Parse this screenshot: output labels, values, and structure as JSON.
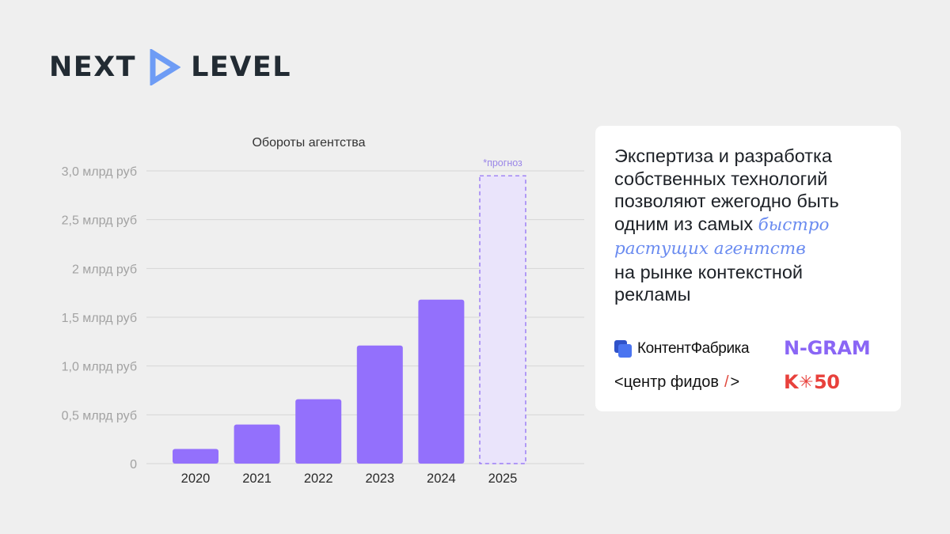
{
  "brand": {
    "left_word": "NEXT",
    "right_word": "LEVEL",
    "arrow_color": "#6e9cf5",
    "text_color": "#222b33"
  },
  "chart_data": {
    "type": "bar",
    "title": "Обороты агентства",
    "categories": [
      "2020",
      "2021",
      "2022",
      "2023",
      "2024",
      "2025"
    ],
    "values": [
      0.15,
      0.4,
      0.66,
      1.21,
      1.68,
      2.95
    ],
    "forecast_index": 5,
    "forecast_label": "*прогноз",
    "ylim": [
      0,
      3.0
    ],
    "yticks": [
      0,
      0.5,
      1.0,
      1.5,
      2.0,
      2.5,
      3.0
    ],
    "ytick_labels": [
      "0",
      "0,5 млрд руб",
      "1,0 млрд руб",
      "1,5 млрд руб",
      "2 млрд руб",
      "2,5 млрд руб",
      "3,0 млрд руб"
    ],
    "grid": true,
    "bar_color": "#9370fc",
    "forecast_fill": "#eae4fb",
    "forecast_stroke": "#8a66f5"
  },
  "card": {
    "line1": "Экспертиза и разработка",
    "line2": "собственных технологий",
    "line3": "позволяют ежегодно быть",
    "line4_prefix": "одним из самых ",
    "accent1": "быстро",
    "accent2": "растущих агентств",
    "line6": "на рынке контекстной",
    "line7": "рекламы",
    "accent_color": "#6a8bf0"
  },
  "partners": {
    "kontent_fabrika": "КонтентФабрика",
    "ngram": "N-GRAM",
    "centr_fidov_text": "<центр фидов",
    "centr_fidov_slash": "/",
    "centr_fidov_end": ">",
    "k50_left": "K",
    "k50_star": "✳",
    "k50_right": "50"
  },
  "icons": {
    "logo_arrow": "play-triangle-icon",
    "kf_logo": "stacked-squares-icon",
    "k50_star": "asterisk-icon"
  }
}
